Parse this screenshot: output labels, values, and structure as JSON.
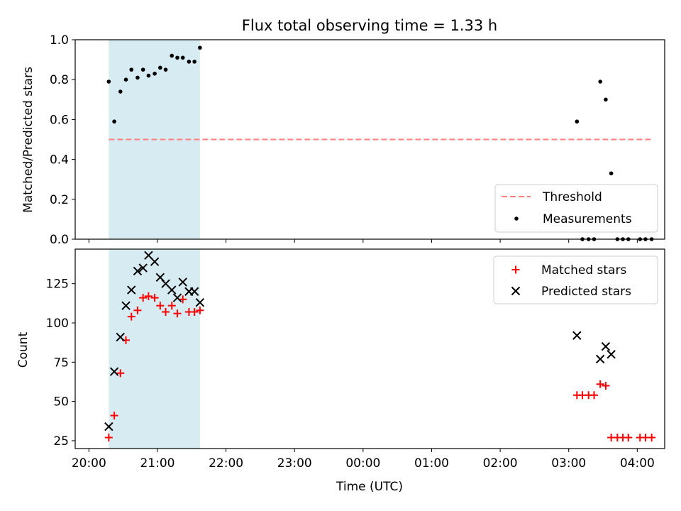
{
  "chart_data": {
    "type": "scatter",
    "title": "Flux total observing time = 1.33 h",
    "xlabel": "Time (UTC)",
    "x_tick_labels": [
      "20:00",
      "21:00",
      "22:00",
      "23:00",
      "00:00",
      "01:00",
      "02:00",
      "03:00",
      "04:00"
    ],
    "x_ticks_hours": [
      20,
      21,
      22,
      23,
      24,
      25,
      26,
      27,
      28
    ],
    "xlim_hours": [
      19.8,
      28.4
    ],
    "shaded_span_hours": [
      20.29,
      21.62
    ],
    "shade_color": "#add8e6",
    "top_panel": {
      "ylabel": "Matched/Predicted stars",
      "ylim": [
        0,
        1.0
      ],
      "y_ticks": [
        0.0,
        0.2,
        0.4,
        0.6,
        0.8,
        1.0
      ],
      "y_tick_labels": [
        "0.0",
        "0.2",
        "0.4",
        "0.6",
        "0.8",
        "1.0"
      ],
      "threshold": {
        "name": "Threshold",
        "value": 0.5,
        "x_start": 20.29,
        "x_end": 28.23,
        "color": "#ff7f7f"
      },
      "measurements": {
        "name": "Measurements",
        "color": "#000000",
        "points": [
          [
            20.29,
            0.79
          ],
          [
            20.37,
            0.59
          ],
          [
            20.46,
            0.74
          ],
          [
            20.54,
            0.8
          ],
          [
            20.62,
            0.85
          ],
          [
            20.71,
            0.81
          ],
          [
            20.79,
            0.85
          ],
          [
            20.87,
            0.82
          ],
          [
            20.96,
            0.83
          ],
          [
            21.04,
            0.86
          ],
          [
            21.12,
            0.85
          ],
          [
            21.21,
            0.92
          ],
          [
            21.29,
            0.91
          ],
          [
            21.37,
            0.91
          ],
          [
            21.46,
            0.89
          ],
          [
            21.54,
            0.89
          ],
          [
            21.62,
            0.96
          ],
          [
            27.12,
            0.59
          ],
          [
            27.2,
            0.0
          ],
          [
            27.29,
            0.0
          ],
          [
            27.37,
            0.0
          ],
          [
            27.46,
            0.79
          ],
          [
            27.54,
            0.7
          ],
          [
            27.62,
            0.33
          ],
          [
            27.71,
            0.0
          ],
          [
            27.79,
            0.0
          ],
          [
            27.87,
            0.0
          ],
          [
            28.04,
            0.0
          ],
          [
            28.12,
            0.0
          ],
          [
            28.21,
            0.0
          ]
        ]
      },
      "legend_position": "lower-right"
    },
    "bottom_panel": {
      "ylabel": "Count",
      "ylim": [
        20,
        147
      ],
      "y_ticks": [
        25,
        50,
        75,
        100,
        125
      ],
      "y_tick_labels": [
        "25",
        "50",
        "75",
        "100",
        "125"
      ],
      "series": [
        {
          "name": "Matched stars",
          "marker": "+",
          "color": "#ff0000",
          "points": [
            [
              20.29,
              27
            ],
            [
              20.37,
              41
            ],
            [
              20.46,
              68
            ],
            [
              20.54,
              89
            ],
            [
              20.62,
              104
            ],
            [
              20.71,
              108
            ],
            [
              20.79,
              116
            ],
            [
              20.87,
              117
            ],
            [
              20.96,
              116
            ],
            [
              21.04,
              111
            ],
            [
              21.12,
              107
            ],
            [
              21.21,
              111
            ],
            [
              21.29,
              106
            ],
            [
              21.37,
              115
            ],
            [
              21.46,
              107
            ],
            [
              21.54,
              107
            ],
            [
              21.62,
              108
            ],
            [
              27.12,
              54
            ],
            [
              27.2,
              54
            ],
            [
              27.29,
              54
            ],
            [
              27.37,
              54
            ],
            [
              27.46,
              61
            ],
            [
              27.54,
              60
            ],
            [
              27.62,
              27
            ],
            [
              27.71,
              27
            ],
            [
              27.79,
              27
            ],
            [
              27.87,
              27
            ],
            [
              28.04,
              27
            ],
            [
              28.12,
              27
            ],
            [
              28.21,
              27
            ]
          ]
        },
        {
          "name": "Predicted stars",
          "marker": "x",
          "color": "#000000",
          "points": [
            [
              20.29,
              34
            ],
            [
              20.37,
              69
            ],
            [
              20.46,
              91
            ],
            [
              20.54,
              111
            ],
            [
              20.62,
              121
            ],
            [
              20.71,
              133
            ],
            [
              20.79,
              135
            ],
            [
              20.87,
              143
            ],
            [
              20.96,
              139
            ],
            [
              21.04,
              129
            ],
            [
              21.12,
              125
            ],
            [
              21.21,
              121
            ],
            [
              21.29,
              116
            ],
            [
              21.37,
              126
            ],
            [
              21.46,
              120
            ],
            [
              21.54,
              120
            ],
            [
              21.62,
              113
            ],
            [
              27.12,
              92
            ],
            [
              27.46,
              77
            ],
            [
              27.54,
              85
            ],
            [
              27.62,
              80
            ]
          ]
        }
      ],
      "legend_position": "upper-right"
    }
  }
}
